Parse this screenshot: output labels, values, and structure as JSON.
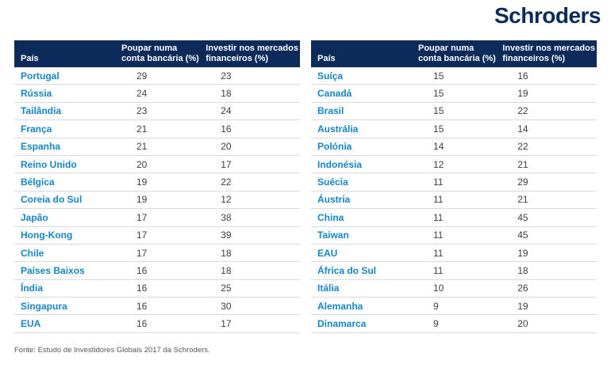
{
  "logo": {
    "text": "Schroders",
    "color": "#0c2b5a"
  },
  "colors": {
    "header_bg": "#0c2b5a",
    "header_text": "#ffffff",
    "country_text": "#1585c7",
    "value_text": "#3f3f3f",
    "row_divider": "#d9d9d9"
  },
  "headers": {
    "country": "País",
    "save": "Poupar numa\nconta bancária (%)",
    "invest": "Investir nos mercados\nfinanceiros (%)"
  },
  "footer": {
    "source": "Fonte: Estudo de Investidores Globais 2017 da Schroders."
  },
  "chart_data": {
    "type": "table",
    "columns": [
      "País",
      "Poupar numa conta bancária (%)",
      "Investir nos mercados financeiros (%)"
    ],
    "tables": [
      {
        "rows": [
          [
            "Portugal",
            29,
            23
          ],
          [
            "Rússia",
            24,
            18
          ],
          [
            "Tailândia",
            23,
            24
          ],
          [
            "França",
            21,
            16
          ],
          [
            "Espanha",
            21,
            20
          ],
          [
            "Reino Unido",
            20,
            17
          ],
          [
            "Bélgica",
            19,
            22
          ],
          [
            "Coreia do Sul",
            19,
            12
          ],
          [
            "Japão",
            17,
            38
          ],
          [
            "Hong-Kong",
            17,
            39
          ],
          [
            "Chile",
            17,
            18
          ],
          [
            "Países Baixos",
            16,
            18
          ],
          [
            "Índia",
            16,
            25
          ],
          [
            "Singapura",
            16,
            30
          ],
          [
            "EUA",
            16,
            17
          ]
        ]
      },
      {
        "rows": [
          [
            "Suíça",
            15,
            16
          ],
          [
            "Canadá",
            15,
            19
          ],
          [
            "Brasil",
            15,
            22
          ],
          [
            "Austrália",
            15,
            14
          ],
          [
            "Polónia",
            14,
            22
          ],
          [
            "Indonésia",
            12,
            21
          ],
          [
            "Suécia",
            11,
            29
          ],
          [
            "Áustria",
            11,
            21
          ],
          [
            "China",
            11,
            45
          ],
          [
            "Taiwan",
            11,
            45
          ],
          [
            "EAU",
            11,
            19
          ],
          [
            "África do Sul",
            11,
            18
          ],
          [
            "Itália",
            10,
            26
          ],
          [
            "Alemanha",
            9,
            19
          ],
          [
            "Dinamarca",
            9,
            20
          ]
        ]
      }
    ]
  }
}
